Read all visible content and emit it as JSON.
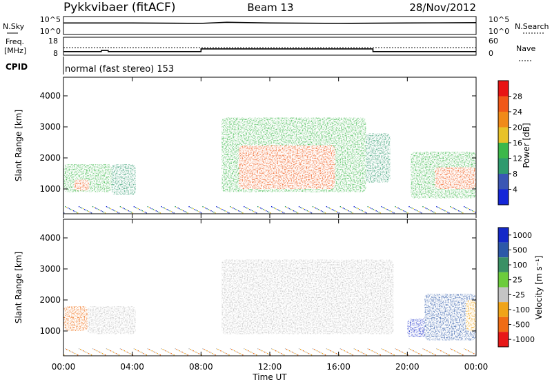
{
  "header": {
    "station": "Pykkvibaer (fitACF)",
    "beam": "Beam 13",
    "date": "28/Nov/2012"
  },
  "noise_panel": {
    "left_label": "N.Sky",
    "right_label": "N.Search",
    "left_ticks": [
      "10^5",
      "10^0"
    ],
    "right_ticks": [
      "10^5",
      "10^0"
    ]
  },
  "freq_panel": {
    "left_label_line1": "Freq.",
    "left_label_line2": "[MHz]",
    "right_label": "Nave",
    "left_ticks": [
      "18",
      "8"
    ],
    "right_ticks": [
      "60",
      "0"
    ]
  },
  "cpid": {
    "label": "CPID",
    "text": "normal (fast stereo) 153"
  },
  "colorbars": {
    "power": {
      "label": "Power [dB]",
      "ticks": [
        "4",
        "8",
        "12",
        "16",
        "20",
        "24",
        "28"
      ],
      "colors": [
        "#1426d8",
        "#3a56b4",
        "#2f9a6e",
        "#3cb84a",
        "#e8c228",
        "#f08a18",
        "#f05818",
        "#e81414"
      ]
    },
    "velocity": {
      "label": "Velocity [m s⁻¹]",
      "ticks": [
        "1000",
        "500",
        "100",
        "25",
        "-25",
        "-100",
        "-500",
        "-1000"
      ],
      "colors": [
        "#1428c8",
        "#2c58a8",
        "#3a9064",
        "#6ccc3c",
        "#c4c4c4",
        "#f0a418",
        "#f06c14",
        "#e81818"
      ]
    }
  },
  "chart_data": [
    {
      "type": "line",
      "title": "",
      "x_unit": "hours UT",
      "xlim": [
        0,
        24
      ],
      "series": [
        {
          "name": "N.Sky",
          "x": [
            0,
            4,
            8,
            9.5,
            12,
            16,
            20,
            24
          ],
          "y": [
            3.2,
            3.2,
            3.1,
            3.4,
            3.2,
            3.1,
            3.2,
            3.3
          ]
        }
      ]
    },
    {
      "type": "line",
      "x_unit": "hours UT",
      "xlim": [
        0,
        24
      ],
      "ylim": [
        8,
        18
      ],
      "series": [
        {
          "name": "Freq",
          "x": [
            0,
            2.2,
            2.2,
            2.6,
            2.6,
            8,
            8,
            18,
            18,
            24
          ],
          "y": [
            10,
            10,
            10.6,
            10.6,
            10,
            10,
            11.5,
            11.5,
            10,
            10
          ]
        }
      ],
      "right_axis": {
        "label": "Nave",
        "ylim": [
          0,
          60
        ],
        "series": [
          {
            "name": "Nave",
            "x": [
              0,
              24
            ],
            "y": [
              25,
              25
            ]
          }
        ]
      }
    },
    {
      "type": "heatmap",
      "quantity": "Power",
      "unit": "dB",
      "xlabel": "",
      "ylabel": "Slant Range [km]",
      "xlim": [
        0,
        24
      ],
      "ylim": [
        200,
        4600
      ],
      "yticks": [
        1000,
        2000,
        3000,
        4000
      ],
      "clim": [
        0,
        32
      ],
      "regions": [
        {
          "t0": 0.0,
          "t1": 2.8,
          "r0": 900,
          "r1": 1800,
          "level": 14
        },
        {
          "t0": 0.6,
          "t1": 1.5,
          "r0": 950,
          "r1": 1300,
          "level": 26
        },
        {
          "t0": 2.8,
          "t1": 4.2,
          "r0": 800,
          "r1": 1800,
          "level": 8
        },
        {
          "t0": 9.2,
          "t1": 17.6,
          "r0": 900,
          "r1": 3300,
          "level": 12
        },
        {
          "t0": 10.2,
          "t1": 15.8,
          "r0": 1000,
          "r1": 2400,
          "level": 24
        },
        {
          "t0": 17.6,
          "t1": 19.0,
          "r0": 1200,
          "r1": 2800,
          "level": 8
        },
        {
          "t0": 20.2,
          "t1": 24.0,
          "r0": 700,
          "r1": 2200,
          "level": 14
        },
        {
          "t0": 21.6,
          "t1": 24.0,
          "r0": 1000,
          "r1": 1700,
          "level": 26
        }
      ]
    },
    {
      "type": "heatmap",
      "quantity": "Velocity",
      "unit": "m s^-1",
      "xlabel": "Time UT",
      "ylabel": "Slant Range [km]",
      "xlim": [
        0,
        24
      ],
      "ylim": [
        200,
        4600
      ],
      "xticks": [
        "00:00",
        "04:00",
        "08:00",
        "12:00",
        "16:00",
        "20:00",
        "00:00"
      ],
      "yticks": [
        1000,
        2000,
        3000,
        4000
      ],
      "regions": [
        {
          "t0": 0.0,
          "t1": 1.4,
          "r0": 1000,
          "r1": 1800,
          "velocity": -100
        },
        {
          "t0": 1.4,
          "t1": 4.2,
          "r0": 900,
          "r1": 1800,
          "velocity": 0
        },
        {
          "t0": 9.2,
          "t1": 19.2,
          "r0": 900,
          "r1": 3300,
          "velocity": 0
        },
        {
          "t0": 20.0,
          "t1": 21.2,
          "r0": 800,
          "r1": 1400,
          "velocity": 800
        },
        {
          "t0": 21.0,
          "t1": 24.0,
          "r0": 700,
          "r1": 2200,
          "velocity": 200
        },
        {
          "t0": 23.4,
          "t1": 24.0,
          "r0": 1000,
          "r1": 2000,
          "velocity": -50
        }
      ]
    }
  ]
}
